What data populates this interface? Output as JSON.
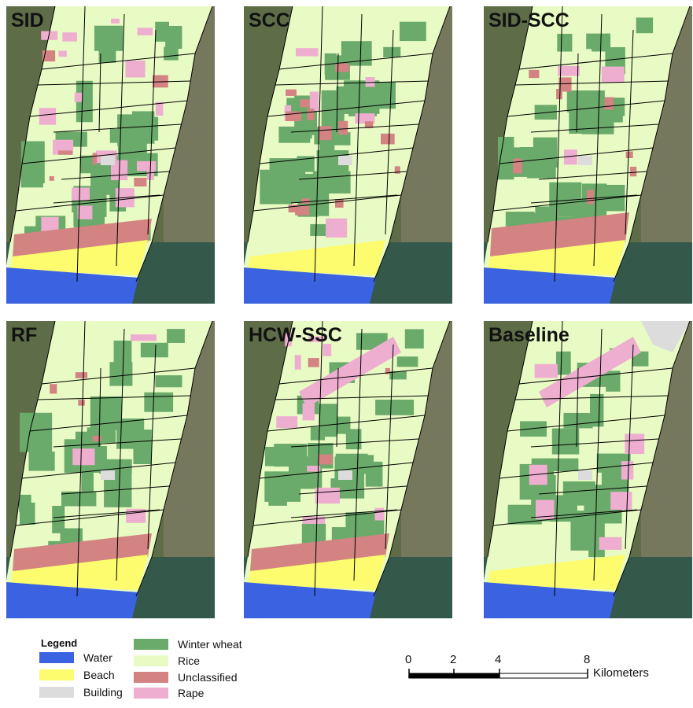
{
  "panels": [
    {
      "title": "SID",
      "variant": 0
    },
    {
      "title": "SCC",
      "variant": 1
    },
    {
      "title": "SID-SCC",
      "variant": 2
    },
    {
      "title": "RF",
      "variant": 3
    },
    {
      "title": "HCW-SSC",
      "variant": 4
    },
    {
      "title": "Baseline",
      "variant": 5
    }
  ],
  "legend": {
    "title": "Legend",
    "items": [
      {
        "label": "Water",
        "color": "#3b62e0"
      },
      {
        "label": "Beach",
        "color": "#fcfc6e"
      },
      {
        "label": "Building",
        "color": "#dcdcdc"
      },
      {
        "label": "Winter wheat",
        "color": "#6aaa6a"
      },
      {
        "label": "Rice",
        "color": "#e9fbc4"
      },
      {
        "label": "Unclassified",
        "color": "#d28382"
      },
      {
        "label": "Rape",
        "color": "#eeaed0"
      }
    ]
  },
  "scale": {
    "ticks": [
      "0",
      "2",
      "4",
      "8"
    ],
    "unit": "Kilometers"
  }
}
